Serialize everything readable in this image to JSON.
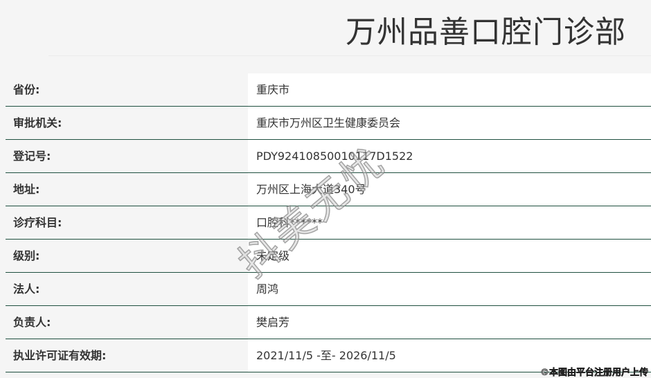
{
  "header": {
    "title": "万州品善口腔门诊部"
  },
  "rows": [
    {
      "label": "省份:",
      "value": "重庆市"
    },
    {
      "label": "审批机关:",
      "value": "重庆市万州区卫生健康委员会"
    },
    {
      "label": "登记号:",
      "value": "PDY92410850010117D1522"
    },
    {
      "label": "地址:",
      "value": "万州区上海大道340号"
    },
    {
      "label": "诊疗科目:",
      "value": "口腔科******"
    },
    {
      "label": "级别:",
      "value": "未定级"
    },
    {
      "label": "法人:",
      "value": "周鸿"
    },
    {
      "label": "负责人:",
      "value": "樊启芳"
    },
    {
      "label": "执业许可证有效期:",
      "value": "2021/11/5 -至- 2026/11/5"
    }
  ],
  "watermark": "抖美无忧",
  "credit": "©本图由平台注册用户上传"
}
